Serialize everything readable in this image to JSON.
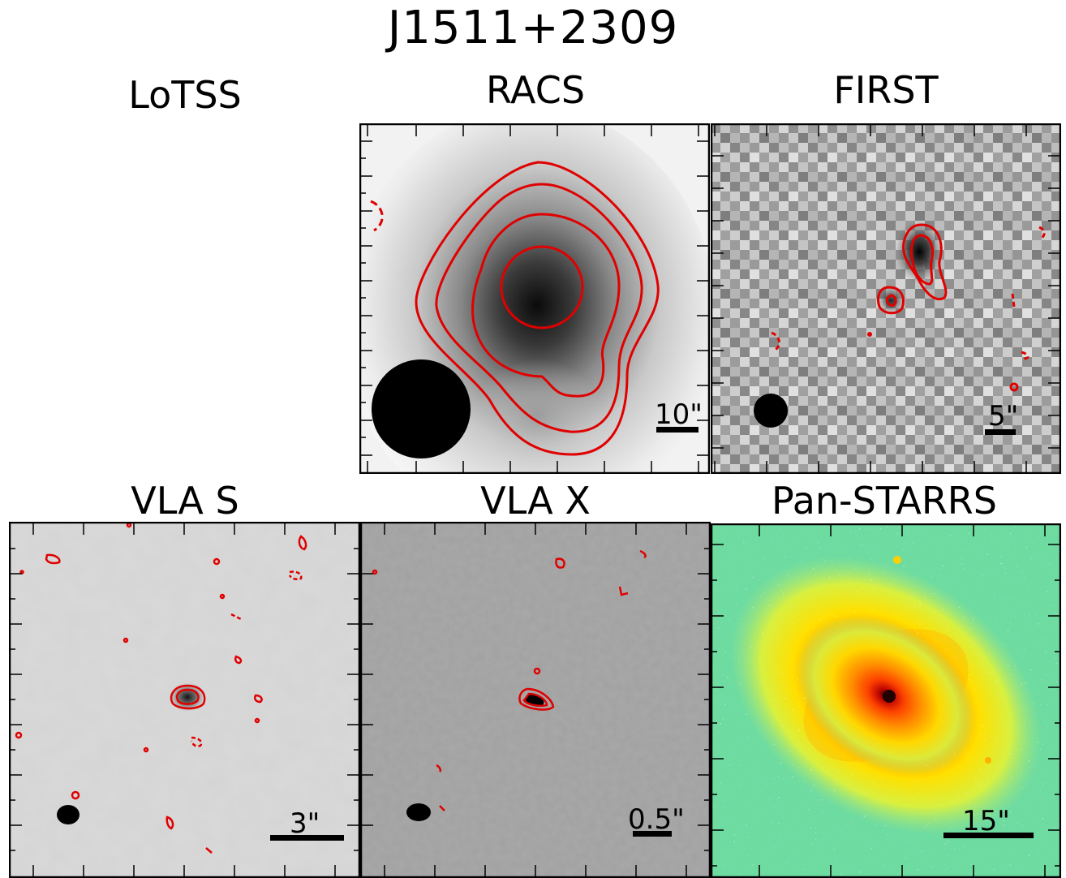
{
  "figure": {
    "title": "J1511+2309"
  },
  "panels": {
    "lotss": {
      "title": "LoTSS"
    },
    "racs": {
      "title": "RACS",
      "scale_bar": "10\""
    },
    "first": {
      "title": "FIRST",
      "scale_bar": "5\""
    },
    "vla_s": {
      "title": "VLA S",
      "scale_bar": "3\""
    },
    "vla_x": {
      "title": "VLA X",
      "scale_bar": "0.5\""
    },
    "panstarrs": {
      "title": "Pan-STARRS",
      "scale_bar": "15\""
    }
  },
  "colors": {
    "contour": "#e00000",
    "frame": "#000000",
    "beam": "#000000"
  }
}
